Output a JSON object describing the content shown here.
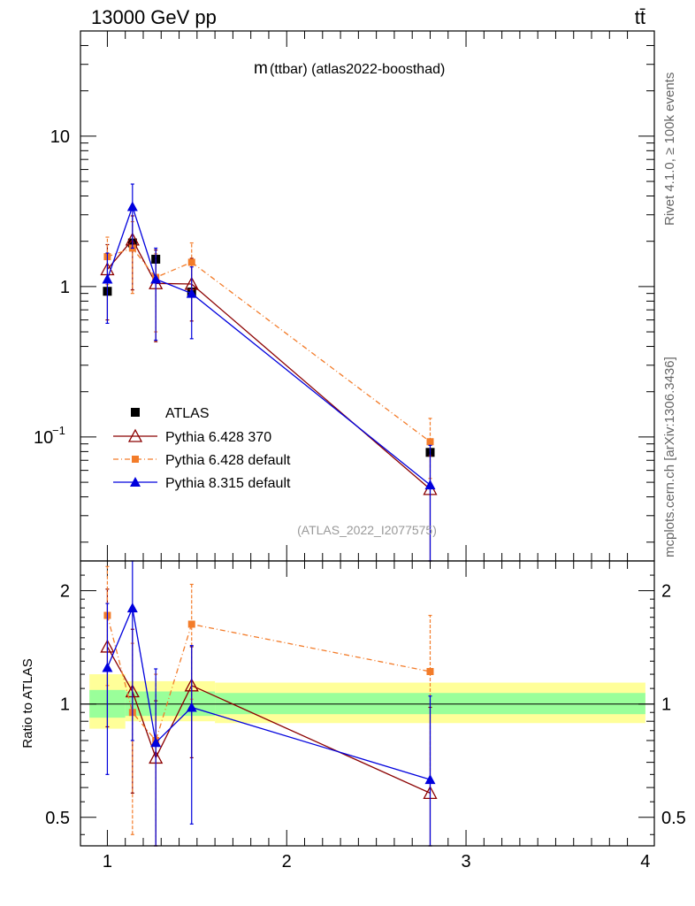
{
  "header": {
    "energy_label": "13000 GeV pp",
    "process_label": "tt̄"
  },
  "side_text": {
    "rivet": "Rivet 4.1.0, ≥ 100k events",
    "source": "mcplots.cern.ch [arXiv:1306.3436]"
  },
  "chart_data": [
    {
      "id": "main",
      "type": "scatter",
      "title_m": "m",
      "title_rest": "(ttbar) (atlas2022-boosthad)",
      "watermark": "(ATLAS_2022_I2077575)",
      "yscale": "log",
      "ylim": [
        0.015,
        50
      ],
      "xlim": [
        0.85,
        4.05
      ],
      "yticks": [
        {
          "v": 10,
          "label": "10"
        },
        {
          "v": 1,
          "label": "1"
        }
      ],
      "ytick_exp": {
        "v": 0.1,
        "base": "10",
        "exp": "−1"
      },
      "legend_position": "bottom-left",
      "series": [
        {
          "name": "ATLAS",
          "x": [
            1.0,
            1.14,
            1.27,
            1.47,
            2.8
          ],
          "y": [
            0.93,
            1.95,
            1.52,
            0.92,
            0.079
          ],
          "yerr_lo": [
            0,
            0,
            0,
            0,
            0
          ],
          "yerr_hi": [
            0,
            0,
            0,
            0,
            0
          ]
        },
        {
          "name": "Pythia 6.428 370",
          "x": [
            1.0,
            1.14,
            1.27,
            1.47,
            2.8
          ],
          "y": [
            1.3,
            2.05,
            1.05,
            1.04,
            0.045
          ],
          "yerr_lo": [
            0.7,
            1.1,
            0.62,
            0.45,
            0.03
          ],
          "yerr_hi": [
            0.6,
            0.9,
            0.7,
            0.5,
            0.03
          ]
        },
        {
          "name": "Pythia 6.428 default",
          "x": [
            1.0,
            1.14,
            1.27,
            1.47,
            2.8
          ],
          "y": [
            1.58,
            1.8,
            1.15,
            1.45,
            0.093
          ],
          "yerr_lo": [
            0.55,
            0.9,
            0.65,
            0.5,
            0.04
          ],
          "yerr_hi": [
            0.55,
            0.9,
            0.5,
            0.5,
            0.04
          ]
        },
        {
          "name": "Pythia 8.315 default",
          "x": [
            1.0,
            1.14,
            1.27,
            1.47,
            2.8
          ],
          "y": [
            1.12,
            3.4,
            1.12,
            0.9,
            0.048
          ],
          "yerr_lo": [
            0.55,
            1.6,
            0.68,
            0.45,
            0.04
          ],
          "yerr_hi": [
            0.55,
            1.4,
            0.68,
            0.45,
            0.04
          ]
        }
      ]
    },
    {
      "id": "ratio",
      "type": "scatter",
      "ylabel": "Ratio to ATLAS",
      "xlabel": "",
      "yscale": "log",
      "ylim": [
        0.42,
        2.4
      ],
      "xlim": [
        0.85,
        4.05
      ],
      "xticks": [
        1,
        2,
        3,
        4
      ],
      "yticks": [
        {
          "v": 2,
          "label": "2"
        },
        {
          "v": 1,
          "label": "1"
        },
        {
          "v": 0.5,
          "label": "0.5"
        }
      ],
      "bands": [
        {
          "x0": 0.9,
          "x1": 1.1,
          "inner": [
            0.92,
            1.09
          ],
          "outer": [
            0.86,
            1.2
          ]
        },
        {
          "x0": 1.1,
          "x1": 1.6,
          "inner": [
            0.93,
            1.08
          ],
          "outer": [
            0.9,
            1.15
          ]
        },
        {
          "x0": 1.6,
          "x1": 4.0,
          "inner": [
            0.94,
            1.07
          ],
          "outer": [
            0.89,
            1.14
          ]
        }
      ],
      "series": [
        {
          "name": "Pythia 6.428 370",
          "x": [
            1.0,
            1.14,
            1.27,
            1.47,
            2.8
          ],
          "y": [
            1.42,
            1.08,
            0.72,
            1.12,
            0.58
          ],
          "yerr_lo": [
            0.55,
            0.5,
            0.3,
            0.4,
            0.4
          ],
          "yerr_hi": [
            0.6,
            0.5,
            0.3,
            0.3,
            0.4
          ]
        },
        {
          "name": "Pythia 6.428 default",
          "x": [
            1.0,
            1.14,
            1.27,
            1.47,
            2.8
          ],
          "y": [
            1.72,
            0.95,
            0.8,
            1.63,
            1.22
          ],
          "yerr_lo": [
            0.6,
            0.5,
            0.4,
            0.6,
            0.6
          ],
          "yerr_hi": [
            0.6,
            0.5,
            0.4,
            0.45,
            0.5
          ]
        },
        {
          "name": "Pythia 8.315 default",
          "x": [
            1.0,
            1.14,
            1.27,
            1.47,
            2.8
          ],
          "y": [
            1.25,
            1.8,
            0.79,
            0.98,
            0.63
          ],
          "yerr_lo": [
            0.6,
            1.0,
            0.6,
            0.5,
            0.5
          ],
          "yerr_hi": [
            0.6,
            1.0,
            0.45,
            0.45,
            0.42
          ]
        }
      ]
    }
  ],
  "colors": {
    "atlas": "#000000",
    "py6_370": "#8b0000",
    "py6_default": "#f37c2a",
    "py8": "#0000dd",
    "band_inner": "#9aff9a",
    "band_outer": "#ffff99",
    "watermark": "#999999",
    "side_text": "#666666"
  }
}
